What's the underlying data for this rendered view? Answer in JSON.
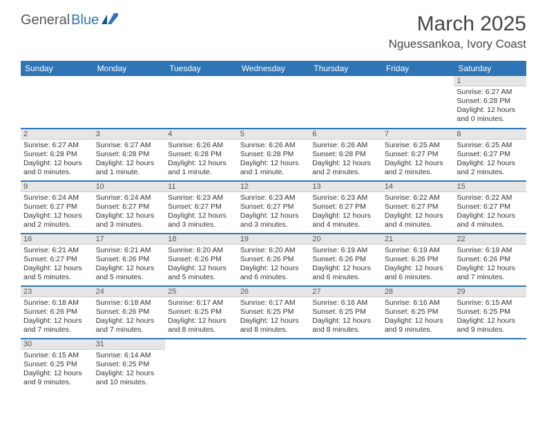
{
  "brand": {
    "part1": "General",
    "part2": "Blue"
  },
  "title": "March 2025",
  "location": "Nguessankoa, Ivory Coast",
  "colors": {
    "header_bg": "#2e75b6",
    "header_text": "#ffffff",
    "daynum_bg": "#e6e6e6",
    "border": "#2e75b6",
    "text": "#333333",
    "brand_gray": "#555555",
    "brand_blue": "#2e75b6"
  },
  "day_headers": [
    "Sunday",
    "Monday",
    "Tuesday",
    "Wednesday",
    "Thursday",
    "Friday",
    "Saturday"
  ],
  "weeks": [
    [
      {
        "n": "",
        "sr": "",
        "ss": "",
        "dl": ""
      },
      {
        "n": "",
        "sr": "",
        "ss": "",
        "dl": ""
      },
      {
        "n": "",
        "sr": "",
        "ss": "",
        "dl": ""
      },
      {
        "n": "",
        "sr": "",
        "ss": "",
        "dl": ""
      },
      {
        "n": "",
        "sr": "",
        "ss": "",
        "dl": ""
      },
      {
        "n": "",
        "sr": "",
        "ss": "",
        "dl": ""
      },
      {
        "n": "1",
        "sr": "Sunrise: 6:27 AM",
        "ss": "Sunset: 6:28 PM",
        "dl": "Daylight: 12 hours and 0 minutes."
      }
    ],
    [
      {
        "n": "2",
        "sr": "Sunrise: 6:27 AM",
        "ss": "Sunset: 6:28 PM",
        "dl": "Daylight: 12 hours and 0 minutes."
      },
      {
        "n": "3",
        "sr": "Sunrise: 6:27 AM",
        "ss": "Sunset: 6:28 PM",
        "dl": "Daylight: 12 hours and 1 minute."
      },
      {
        "n": "4",
        "sr": "Sunrise: 6:26 AM",
        "ss": "Sunset: 6:28 PM",
        "dl": "Daylight: 12 hours and 1 minute."
      },
      {
        "n": "5",
        "sr": "Sunrise: 6:26 AM",
        "ss": "Sunset: 6:28 PM",
        "dl": "Daylight: 12 hours and 1 minute."
      },
      {
        "n": "6",
        "sr": "Sunrise: 6:26 AM",
        "ss": "Sunset: 6:28 PM",
        "dl": "Daylight: 12 hours and 2 minutes."
      },
      {
        "n": "7",
        "sr": "Sunrise: 6:25 AM",
        "ss": "Sunset: 6:27 PM",
        "dl": "Daylight: 12 hours and 2 minutes."
      },
      {
        "n": "8",
        "sr": "Sunrise: 6:25 AM",
        "ss": "Sunset: 6:27 PM",
        "dl": "Daylight: 12 hours and 2 minutes."
      }
    ],
    [
      {
        "n": "9",
        "sr": "Sunrise: 6:24 AM",
        "ss": "Sunset: 6:27 PM",
        "dl": "Daylight: 12 hours and 2 minutes."
      },
      {
        "n": "10",
        "sr": "Sunrise: 6:24 AM",
        "ss": "Sunset: 6:27 PM",
        "dl": "Daylight: 12 hours and 3 minutes."
      },
      {
        "n": "11",
        "sr": "Sunrise: 6:23 AM",
        "ss": "Sunset: 6:27 PM",
        "dl": "Daylight: 12 hours and 3 minutes."
      },
      {
        "n": "12",
        "sr": "Sunrise: 6:23 AM",
        "ss": "Sunset: 6:27 PM",
        "dl": "Daylight: 12 hours and 3 minutes."
      },
      {
        "n": "13",
        "sr": "Sunrise: 6:23 AM",
        "ss": "Sunset: 6:27 PM",
        "dl": "Daylight: 12 hours and 4 minutes."
      },
      {
        "n": "14",
        "sr": "Sunrise: 6:22 AM",
        "ss": "Sunset: 6:27 PM",
        "dl": "Daylight: 12 hours and 4 minutes."
      },
      {
        "n": "15",
        "sr": "Sunrise: 6:22 AM",
        "ss": "Sunset: 6:27 PM",
        "dl": "Daylight: 12 hours and 4 minutes."
      }
    ],
    [
      {
        "n": "16",
        "sr": "Sunrise: 6:21 AM",
        "ss": "Sunset: 6:27 PM",
        "dl": "Daylight: 12 hours and 5 minutes."
      },
      {
        "n": "17",
        "sr": "Sunrise: 6:21 AM",
        "ss": "Sunset: 6:26 PM",
        "dl": "Daylight: 12 hours and 5 minutes."
      },
      {
        "n": "18",
        "sr": "Sunrise: 6:20 AM",
        "ss": "Sunset: 6:26 PM",
        "dl": "Daylight: 12 hours and 5 minutes."
      },
      {
        "n": "19",
        "sr": "Sunrise: 6:20 AM",
        "ss": "Sunset: 6:26 PM",
        "dl": "Daylight: 12 hours and 6 minutes."
      },
      {
        "n": "20",
        "sr": "Sunrise: 6:19 AM",
        "ss": "Sunset: 6:26 PM",
        "dl": "Daylight: 12 hours and 6 minutes."
      },
      {
        "n": "21",
        "sr": "Sunrise: 6:19 AM",
        "ss": "Sunset: 6:26 PM",
        "dl": "Daylight: 12 hours and 6 minutes."
      },
      {
        "n": "22",
        "sr": "Sunrise: 6:19 AM",
        "ss": "Sunset: 6:26 PM",
        "dl": "Daylight: 12 hours and 7 minutes."
      }
    ],
    [
      {
        "n": "23",
        "sr": "Sunrise: 6:18 AM",
        "ss": "Sunset: 6:26 PM",
        "dl": "Daylight: 12 hours and 7 minutes."
      },
      {
        "n": "24",
        "sr": "Sunrise: 6:18 AM",
        "ss": "Sunset: 6:26 PM",
        "dl": "Daylight: 12 hours and 7 minutes."
      },
      {
        "n": "25",
        "sr": "Sunrise: 6:17 AM",
        "ss": "Sunset: 6:25 PM",
        "dl": "Daylight: 12 hours and 8 minutes."
      },
      {
        "n": "26",
        "sr": "Sunrise: 6:17 AM",
        "ss": "Sunset: 6:25 PM",
        "dl": "Daylight: 12 hours and 8 minutes."
      },
      {
        "n": "27",
        "sr": "Sunrise: 6:16 AM",
        "ss": "Sunset: 6:25 PM",
        "dl": "Daylight: 12 hours and 8 minutes."
      },
      {
        "n": "28",
        "sr": "Sunrise: 6:16 AM",
        "ss": "Sunset: 6:25 PM",
        "dl": "Daylight: 12 hours and 9 minutes."
      },
      {
        "n": "29",
        "sr": "Sunrise: 6:15 AM",
        "ss": "Sunset: 6:25 PM",
        "dl": "Daylight: 12 hours and 9 minutes."
      }
    ],
    [
      {
        "n": "30",
        "sr": "Sunrise: 6:15 AM",
        "ss": "Sunset: 6:25 PM",
        "dl": "Daylight: 12 hours and 9 minutes."
      },
      {
        "n": "31",
        "sr": "Sunrise: 6:14 AM",
        "ss": "Sunset: 6:25 PM",
        "dl": "Daylight: 12 hours and 10 minutes."
      },
      {
        "n": "",
        "sr": "",
        "ss": "",
        "dl": ""
      },
      {
        "n": "",
        "sr": "",
        "ss": "",
        "dl": ""
      },
      {
        "n": "",
        "sr": "",
        "ss": "",
        "dl": ""
      },
      {
        "n": "",
        "sr": "",
        "ss": "",
        "dl": ""
      },
      {
        "n": "",
        "sr": "",
        "ss": "",
        "dl": ""
      }
    ]
  ]
}
